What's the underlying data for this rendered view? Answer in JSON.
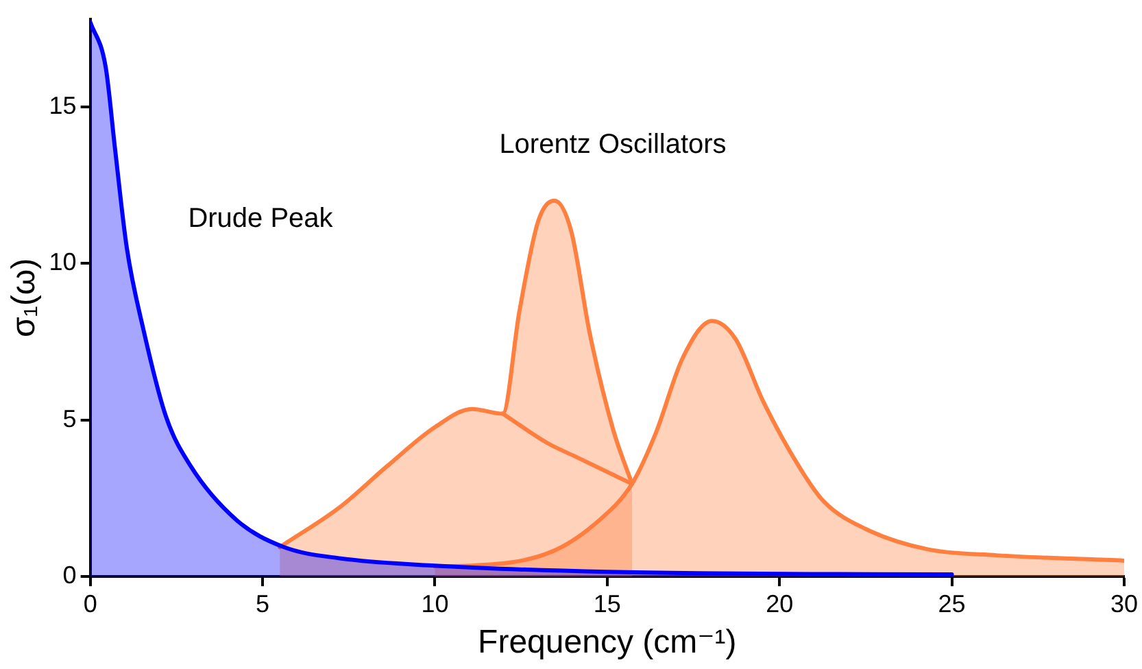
{
  "chart_data": {
    "type": "area",
    "xlabel": "Frequency (cm⁻¹)",
    "ylabel": "σ₁(ω)",
    "xlim": [
      0,
      30
    ],
    "xticks": [
      0,
      5,
      10,
      15,
      20,
      25,
      30
    ],
    "ylim": [
      0,
      17.8
    ],
    "yticks": [
      0,
      5,
      10,
      15
    ],
    "marker": "none",
    "annotations": [
      "Drude Peak",
      "Lorentz Oscillators"
    ],
    "series": [
      {
        "color": "#0000ff",
        "x": [
          0,
          0.45,
          0.72,
          1.06,
          1.54,
          2.2,
          2.9,
          4.25,
          5.6,
          7.27,
          10,
          15,
          21.7,
          25
        ],
        "values": [
          17.7,
          16.25,
          13.65,
          10.5,
          7.9,
          5.1,
          3.55,
          1.8,
          0.95,
          0.58,
          0.35,
          0.15,
          0.08,
          0.07
        ]
      },
      {
        "color": "#ff7f3f",
        "x": [
          5.5,
          7.27,
          8.63,
          10,
          11.08,
          11.97,
          12.45,
          13,
          13.47,
          13.95,
          14.5,
          15.17,
          15.72
        ],
        "values": [
          0.94,
          2.24,
          3.54,
          4.77,
          5.35,
          5.2,
          8.45,
          11.35,
          12.0,
          11.05,
          7.73,
          4.7,
          2.96
        ]
      },
      {
        "type": "line",
        "color": "#ff7f3f",
        "x": [
          11.97,
          13.27,
          14.08,
          15.72
        ],
        "values": [
          5.2,
          4.26,
          3.83,
          2.96
        ]
      },
      {
        "color": "#ff7f3f",
        "x": [
          10,
          11.08,
          13.4,
          14.77,
          15.72,
          16.4,
          17.2,
          18.04,
          18.72,
          19.54,
          20.63,
          21.3,
          22.5,
          24.3,
          26.3,
          30
        ],
        "values": [
          0.33,
          0.35,
          0.8,
          1.8,
          2.96,
          4.55,
          7.0,
          8.16,
          7.59,
          5.56,
          3.4,
          2.38,
          1.52,
          0.87,
          0.68,
          0.51
        ]
      }
    ]
  }
}
